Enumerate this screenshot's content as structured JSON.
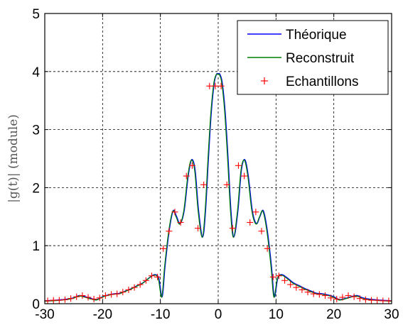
{
  "chart_data": {
    "type": "line",
    "ylabel": "|g(t)| (module)",
    "xlim": [
      -30,
      30
    ],
    "ylim": [
      0,
      5
    ],
    "xticks": [
      -30,
      -20,
      -10,
      0,
      10,
      20,
      30
    ],
    "yticks": [
      0,
      1,
      2,
      3,
      4,
      5
    ],
    "x_tick_labels": [
      "-30",
      "-20",
      "-10",
      "0",
      "10",
      "20",
      "30"
    ],
    "y_tick_labels": [
      "0",
      "1",
      "2",
      "3",
      "4",
      "5"
    ],
    "grid": true,
    "legend_position": "top-right",
    "series": [
      {
        "name": "Théorique",
        "kind": "line",
        "color": "#0000ff"
      },
      {
        "name": "Reconstruit",
        "kind": "line",
        "color": "#007f00"
      },
      {
        "name": "Echantillons",
        "kind": "markers",
        "marker": "+",
        "color": "#ff0000"
      }
    ],
    "curve_points": {
      "x": [
        -30,
        -28,
        -26,
        -25,
        -24,
        -23,
        -22,
        -21,
        -20,
        -19,
        -18,
        -17,
        -16,
        -15,
        -14,
        -13,
        -12,
        -11,
        -10.3,
        -9.7,
        -9.2,
        -8.5,
        -7.8,
        -7.2,
        -6.6,
        -5.9,
        -5.2,
        -4.6,
        -4.0,
        -3.4,
        -2.7,
        -2.2,
        -1.7,
        -1.2,
        -0.7,
        -0.3,
        0,
        0.3,
        0.7,
        1.2,
        1.7,
        2.2,
        2.7,
        3.4,
        4.0,
        4.6,
        5.2,
        5.9,
        6.6,
        7.2,
        7.8,
        8.5,
        9.2,
        9.7,
        10.3,
        11,
        12,
        13,
        14,
        15,
        16,
        17,
        18,
        19,
        20,
        21,
        22,
        23,
        24,
        25,
        26,
        28,
        30
      ],
      "y": [
        0.05,
        0.06,
        0.08,
        0.1,
        0.14,
        0.12,
        0.09,
        0.07,
        0.12,
        0.15,
        0.17,
        0.18,
        0.22,
        0.26,
        0.31,
        0.36,
        0.44,
        0.5,
        0.44,
        0.12,
        0.65,
        1.25,
        1.6,
        1.5,
        1.38,
        1.6,
        2.2,
        2.48,
        2.3,
        1.6,
        1.15,
        1.6,
        2.5,
        3.3,
        3.8,
        3.95,
        3.96,
        3.95,
        3.8,
        3.3,
        2.5,
        1.6,
        1.15,
        1.6,
        2.3,
        2.48,
        2.2,
        1.6,
        1.38,
        1.5,
        1.6,
        1.25,
        0.65,
        0.12,
        0.44,
        0.5,
        0.44,
        0.36,
        0.31,
        0.26,
        0.22,
        0.18,
        0.17,
        0.15,
        0.12,
        0.07,
        0.09,
        0.12,
        0.14,
        0.1,
        0.08,
        0.06,
        0.05
      ]
    },
    "samples": {
      "x": [
        -29.5,
        -28.5,
        -27.5,
        -26.5,
        -25.5,
        -24.5,
        -23.5,
        -22.5,
        -21.5,
        -20.5,
        -19.5,
        -18.5,
        -17.5,
        -16.5,
        -15.5,
        -14.5,
        -13.5,
        -12.5,
        -11.5,
        -10.5,
        -9.5,
        -8.5,
        -7.5,
        -6.5,
        -5.5,
        -4.5,
        -3.5,
        -2.5,
        -1.5,
        -0.5,
        0.5,
        1.5,
        2.5,
        3.5,
        4.5,
        5.5,
        6.5,
        7.5,
        8.5,
        9.5,
        10.5,
        11.5,
        12.5,
        13.5,
        14.5,
        15.5,
        16.5,
        17.5,
        18.5,
        19.5,
        20.5,
        21.5,
        22.5,
        23.5,
        24.5,
        25.5,
        26.5,
        27.5,
        28.5,
        29.5
      ],
      "y": [
        0.05,
        0.06,
        0.06,
        0.07,
        0.09,
        0.12,
        0.14,
        0.11,
        0.08,
        0.1,
        0.14,
        0.16,
        0.17,
        0.2,
        0.24,
        0.28,
        0.33,
        0.4,
        0.48,
        0.46,
        0.95,
        1.25,
        1.58,
        1.4,
        2.2,
        2.38,
        1.3,
        2.05,
        3.75,
        3.75,
        3.75,
        2.05,
        1.3,
        2.38,
        2.2,
        1.4,
        1.58,
        1.25,
        0.95,
        0.46,
        0.48,
        0.4,
        0.33,
        0.28,
        0.24,
        0.2,
        0.17,
        0.16,
        0.14,
        0.1,
        0.08,
        0.11,
        0.14,
        0.12,
        0.09,
        0.07,
        0.06,
        0.06,
        0.05,
        0.05
      ]
    }
  }
}
